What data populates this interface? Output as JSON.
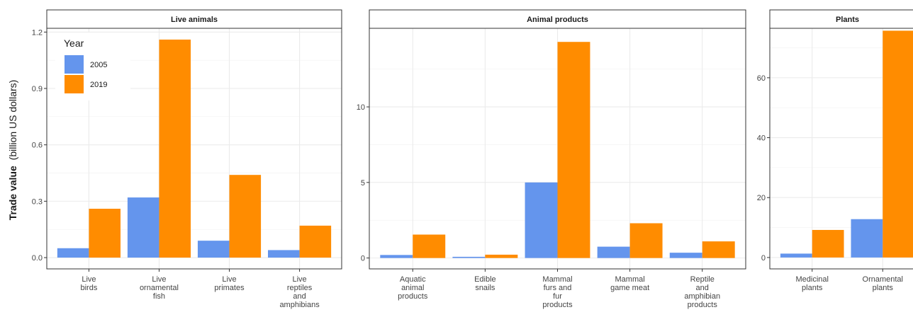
{
  "colors": {
    "2005": "#6495ED",
    "2019": "#FF8C00"
  },
  "ylabel": {
    "bold": "Trade value",
    "rest": "(billion US dollars)"
  },
  "legend": {
    "title": "Year",
    "items": [
      "2005",
      "2019"
    ],
    "placement": "top-left"
  },
  "chart_data": [
    {
      "type": "bar",
      "title": "Live animals",
      "categories": [
        [
          "Live",
          "birds"
        ],
        [
          "Live",
          "ornamental",
          "fish"
        ],
        [
          "Live",
          "primates"
        ],
        [
          "Live",
          "reptiles",
          "and",
          "amphibians"
        ]
      ],
      "series": [
        {
          "name": "2005",
          "values": [
            0.05,
            0.32,
            0.09,
            0.04
          ]
        },
        {
          "name": "2019",
          "values": [
            0.26,
            1.16,
            0.44,
            0.17
          ]
        }
      ],
      "yticks": [
        0.0,
        0.3,
        0.6,
        0.9,
        1.2
      ],
      "ytick_labels": [
        "0.0",
        "0.3",
        "0.6",
        "0.9",
        "1.2"
      ],
      "ylim": [
        -0.06,
        1.22
      ],
      "grid": true
    },
    {
      "type": "bar",
      "title": "Animal products",
      "categories": [
        [
          "Aquatic",
          "animal",
          "products"
        ],
        [
          "Edible",
          "snails"
        ],
        [
          "Mammal",
          "furs and",
          "fur",
          "products"
        ],
        [
          "Mammal",
          "game meat"
        ],
        [
          "Reptile",
          "and",
          "amphibian",
          "products"
        ]
      ],
      "series": [
        {
          "name": "2005",
          "values": [
            0.2,
            0.08,
            5.0,
            0.75,
            0.35
          ]
        },
        {
          "name": "2019",
          "values": [
            1.55,
            0.22,
            14.3,
            2.3,
            1.1
          ]
        }
      ],
      "yticks": [
        0,
        5,
        10
      ],
      "ytick_labels": [
        "0",
        "5",
        "10"
      ],
      "ylim": [
        -0.72,
        15.2
      ],
      "grid": true
    },
    {
      "type": "bar",
      "title": "Plants",
      "categories": [
        [
          "Medicinal",
          "plants"
        ],
        [
          "Ornamental",
          "plants"
        ]
      ],
      "series": [
        {
          "name": "2005",
          "values": [
            1.3,
            12.8
          ]
        },
        {
          "name": "2019",
          "values": [
            9.2,
            75.7
          ]
        }
      ],
      "yticks": [
        0,
        20,
        40,
        60
      ],
      "ytick_labels": [
        "0",
        "20",
        "40",
        "60"
      ],
      "ylim": [
        -3.8,
        76.5
      ],
      "grid": true
    }
  ]
}
